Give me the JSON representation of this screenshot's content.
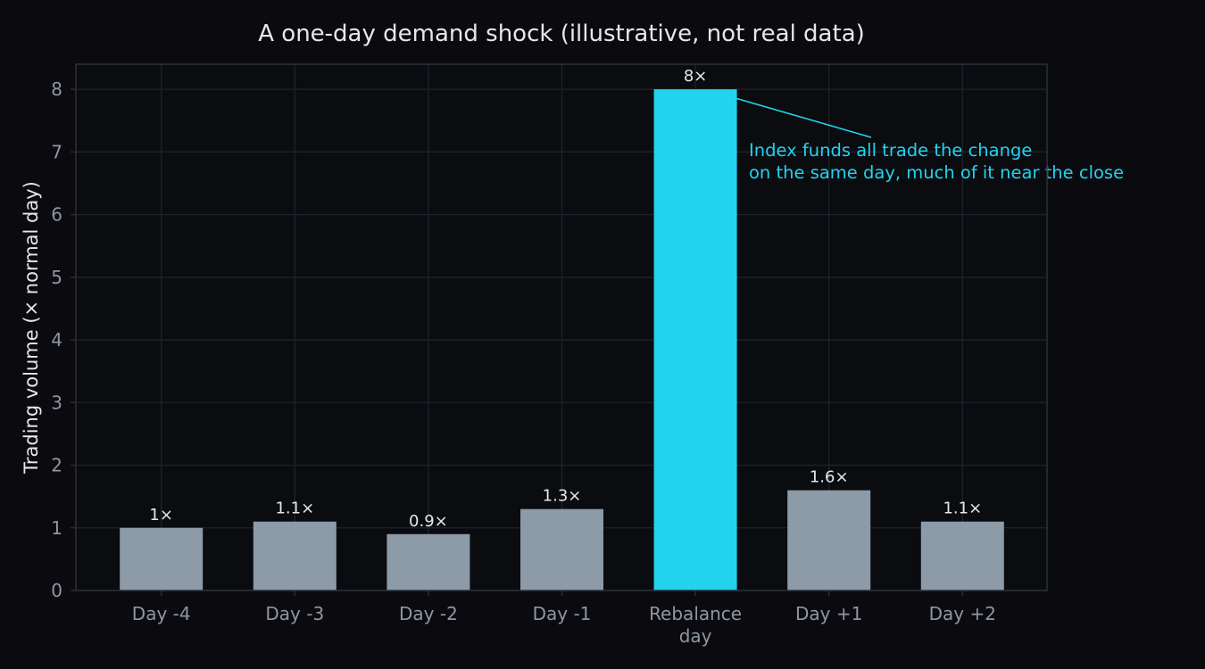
{
  "chart_data": {
    "type": "bar",
    "title": "A one-day demand shock (illustrative, not real data)",
    "xlabel": "",
    "ylabel": "Trading volume (× normal day)",
    "categories": [
      [
        "Day -4"
      ],
      [
        "Day -3"
      ],
      [
        "Day -2"
      ],
      [
        "Day -1"
      ],
      [
        "Rebalance",
        "day"
      ],
      [
        "Day +1"
      ],
      [
        "Day +2"
      ]
    ],
    "values": [
      1.0,
      1.1,
      0.9,
      1.3,
      8.0,
      1.6,
      1.1
    ],
    "value_labels": [
      "1×",
      "1.1×",
      "0.9×",
      "1.3×",
      "8×",
      "1.6×",
      "1.1×"
    ],
    "highlight_index": 4,
    "ylim": [
      0,
      8.4
    ],
    "yticks": [
      "0",
      "1",
      "2",
      "3",
      "4",
      "5",
      "6",
      "7",
      "8"
    ],
    "grid": true,
    "annotation": {
      "lines": [
        "Index funds all trade the change",
        "on the same day, much of it near the close"
      ],
      "point_index": 4,
      "point_value": 8.0
    },
    "colors": {
      "background": "#0b0b0f",
      "plot_background": "#0b0c10",
      "bar": "#8d9aa7",
      "highlight": "#22d3ee",
      "grid": "#1d232c",
      "axis": "#2a313b",
      "tick_text": "#8d97a3",
      "title_text": "#e5e7eb",
      "label_text": "#e5e7eb",
      "annotation_text": "#22d3ee"
    }
  }
}
